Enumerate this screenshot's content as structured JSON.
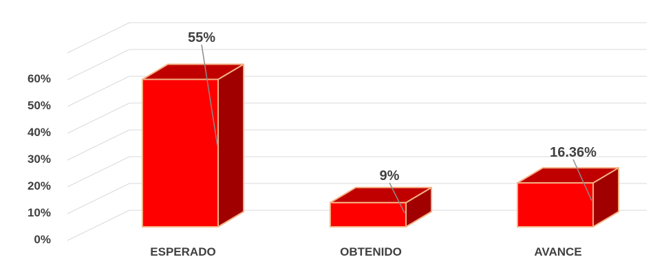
{
  "chart_data": {
    "type": "bar",
    "categories": [
      "ESPERADO",
      "OBTENIDO",
      "AVANCE"
    ],
    "values": [
      55,
      9,
      16.36
    ],
    "data_labels": [
      "55%",
      "9%",
      "16.36%"
    ],
    "y_ticks": [
      0,
      10,
      20,
      30,
      40,
      50,
      60
    ],
    "y_tick_labels": [
      "0%",
      "10%",
      "20%",
      "30%",
      "40%",
      "50%",
      "60%"
    ],
    "ylim": [
      0,
      60
    ],
    "grid": true,
    "style": "3d-column",
    "colors": {
      "front": "#ff0000",
      "top": "#c00000",
      "side": "#a00000",
      "edge": "#f4b183",
      "grid": "#d9d9d9",
      "text": "#404040",
      "leader": "#8c8c8c"
    }
  }
}
